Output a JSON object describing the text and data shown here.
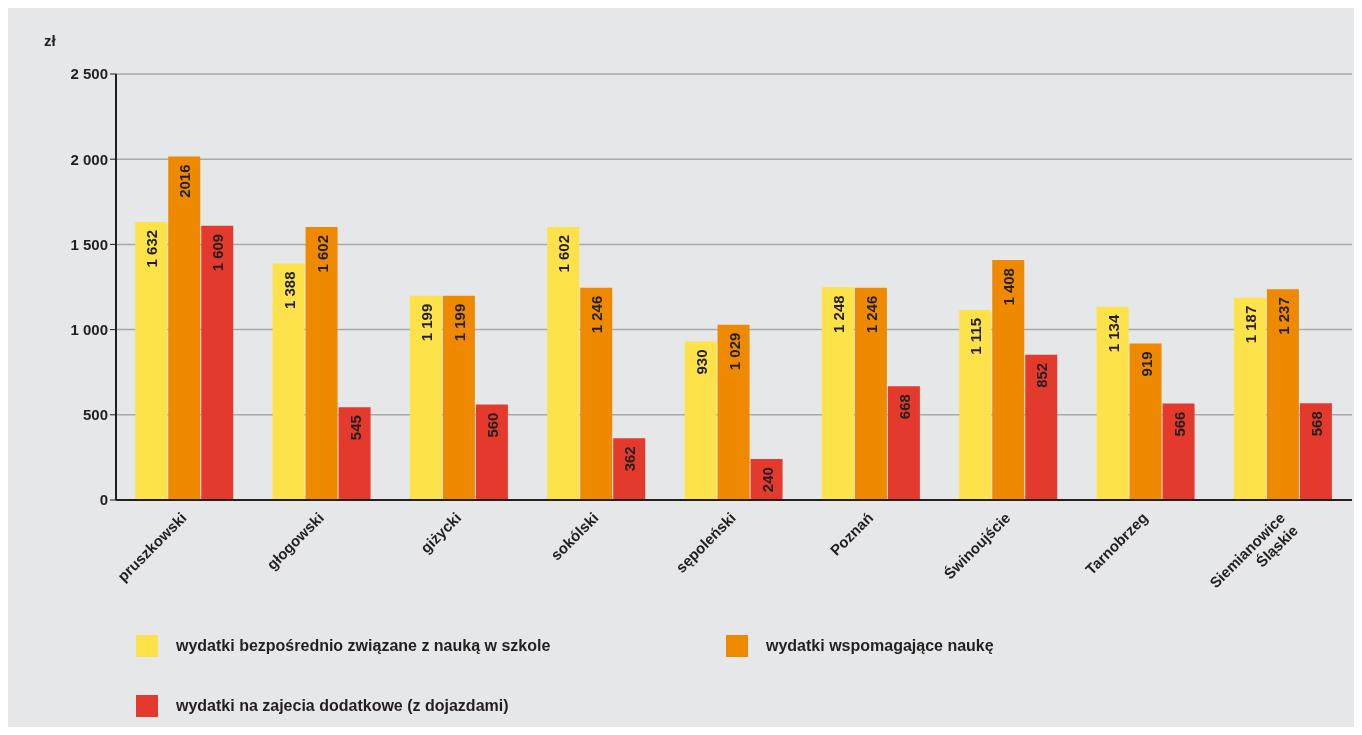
{
  "chart_data": {
    "type": "bar",
    "ylabel": "zł",
    "categories": [
      "pruszkowski",
      "głogowski",
      "giżycki",
      "sokólski",
      "sępoleński",
      "Poznań",
      "Świnoujście",
      "Tarnobrzeg",
      "Siemianowice Śląskie"
    ],
    "series": [
      {
        "name": "wydatki bezpośrednio związane z nauką w szkole",
        "color": "#fde24a",
        "values": [
          1632,
          1388,
          1199,
          1602,
          930,
          1248,
          1115,
          1134,
          1187
        ],
        "value_labels": [
          "1 632",
          "1 388",
          "1 199",
          "1 602",
          "930",
          "1 248",
          "1 115",
          "1 134",
          "1 187"
        ]
      },
      {
        "name": "wydatki wspomagające naukę",
        "color": "#ef8a00",
        "values": [
          2016,
          1602,
          1199,
          1246,
          1029,
          1246,
          1408,
          919,
          1237
        ],
        "value_labels": [
          "2016",
          "1 602",
          "1 199",
          "1 246",
          "1 029",
          "1 246",
          "1 408",
          "919",
          "1 237"
        ]
      },
      {
        "name": "wydatki na zajecia dodatkowe (z dojazdami)",
        "color": "#e43a2d",
        "values": [
          1609,
          545,
          560,
          362,
          240,
          668,
          852,
          566,
          568
        ],
        "value_labels": [
          "1 609",
          "545",
          "560",
          "362",
          "240",
          "668",
          "852",
          "566",
          "568"
        ]
      }
    ],
    "ylim": [
      0,
      2500
    ],
    "yticks": [
      0,
      {
        "value": 500,
        "label": "500"
      },
      {
        "value": 1000,
        "label": "1 000"
      },
      {
        "value": 1500,
        "label": "1 500"
      },
      {
        "value": 2000,
        "label": "2 000"
      },
      {
        "value": 2500,
        "label": "2 500"
      }
    ],
    "grid": "y",
    "legend": "bottom"
  }
}
